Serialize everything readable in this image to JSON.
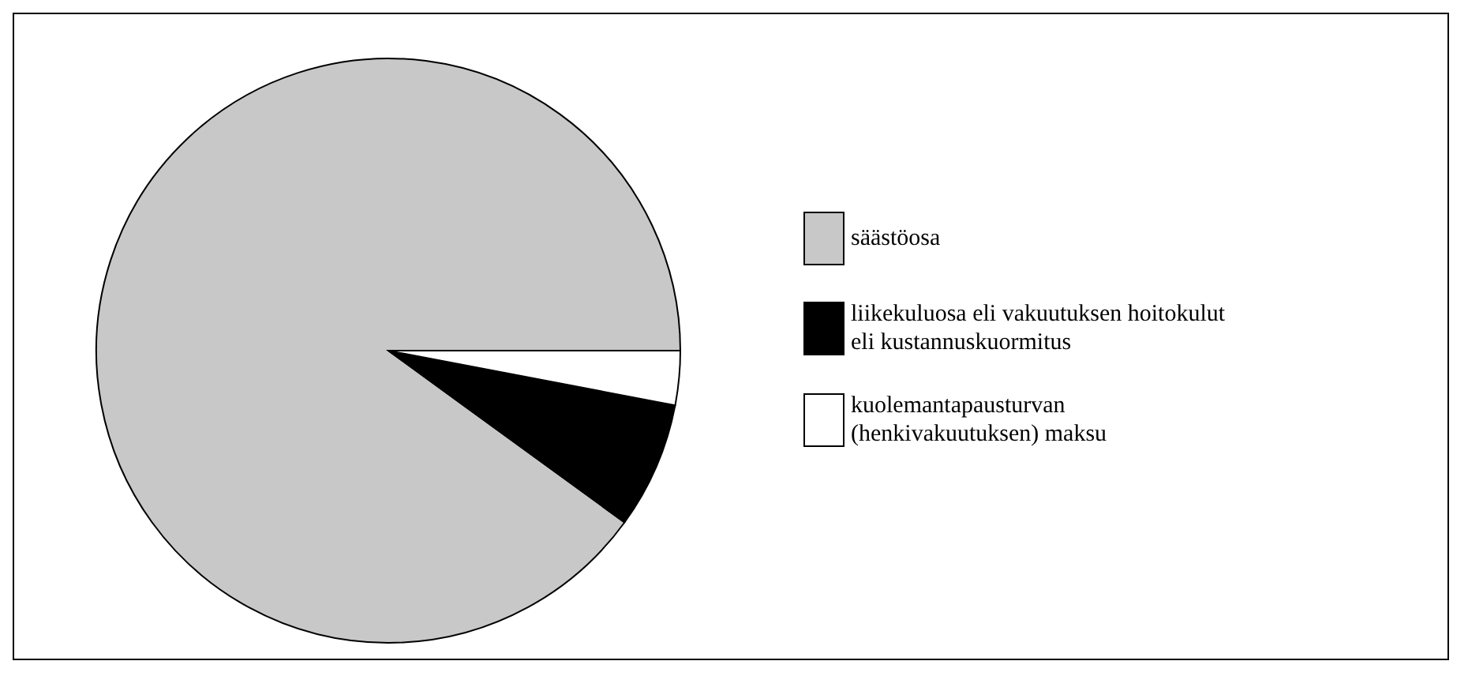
{
  "chart_data": {
    "type": "pie",
    "categories": [
      "säästöosa",
      "liikekuluosa eli vakuutuksen hoitokulut eli kustannuskuormitus",
      "kuolemantapausturvan (henkivakuutuksen) maksu"
    ],
    "values": [
      90,
      7,
      3
    ],
    "colors": [
      "#c8c8c8",
      "#000000",
      "#ffffff"
    ],
    "legend": "right"
  }
}
